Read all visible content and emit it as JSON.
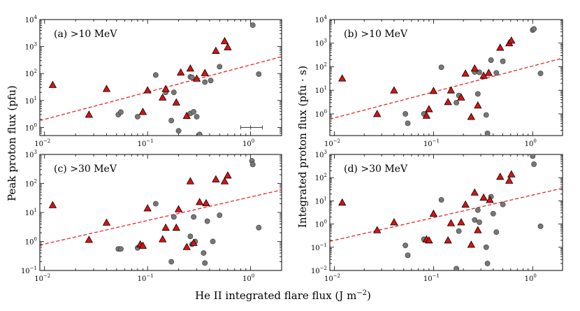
{
  "figure": {
    "xlabel": "He II integrated flare flux (J m",
    "xlabel_exp": "−2",
    "xlabel_close": ")",
    "ylabel_left": "Peak proton flux (pfu)",
    "ylabel_right": "Integrated proton flux (pfu · s)"
  },
  "colors": {
    "triangle_fill": "#dd1111",
    "triangle_edge": "#000000",
    "circle_fill": "#777777",
    "circle_edge": "#333333",
    "fit_line": "#ee2222"
  },
  "chart_data": [
    {
      "id": "a",
      "type": "scatter",
      "label": "(a) >10 MeV",
      "xscale": "log",
      "yscale": "log",
      "xlim": [
        0.009,
        2.0
      ],
      "ylim": [
        0.5,
        10000
      ],
      "yticks": [
        1,
        10,
        100,
        1000,
        10000
      ],
      "xticks": [
        0.01,
        0.1,
        1
      ],
      "fit_line": [
        [
          0.009,
          1.8
        ],
        [
          2.0,
          420
        ]
      ],
      "error_bar": {
        "x": 1.0,
        "y": 1.0,
        "xerr_low": 0.8,
        "xerr_high": 1.3
      },
      "triangles": [
        [
          0.012,
          38
        ],
        [
          0.027,
          3.0
        ],
        [
          0.04,
          27
        ],
        [
          0.09,
          3.8
        ],
        [
          0.1,
          24
        ],
        [
          0.14,
          13
        ],
        [
          0.15,
          27
        ],
        [
          0.19,
          8.5
        ],
        [
          0.21,
          110
        ],
        [
          0.24,
          2.7
        ],
        [
          0.26,
          155
        ],
        [
          0.3,
          65
        ],
        [
          0.36,
          105
        ],
        [
          0.46,
          700
        ],
        [
          0.56,
          1600
        ],
        [
          0.6,
          950
        ]
      ],
      "circles": [
        [
          0.052,
          3.0
        ],
        [
          0.055,
          3.7
        ],
        [
          0.08,
          2.5
        ],
        [
          0.12,
          88
        ],
        [
          0.15,
          20
        ],
        [
          0.17,
          1.8
        ],
        [
          0.18,
          20
        ],
        [
          0.2,
          0.75
        ],
        [
          0.26,
          75
        ],
        [
          0.26,
          3.3
        ],
        [
          0.27,
          72
        ],
        [
          0.28,
          3.8
        ],
        [
          0.3,
          2.5
        ],
        [
          0.32,
          0.55
        ],
        [
          0.36,
          48
        ],
        [
          0.41,
          55
        ],
        [
          0.5,
          180
        ],
        [
          1.05,
          6200
        ],
        [
          1.2,
          95
        ]
      ]
    },
    {
      "id": "b",
      "type": "scatter",
      "label": "(b) >10 MeV",
      "xscale": "log",
      "yscale": "log",
      "xlim": [
        0.009,
        2.0
      ],
      "ylim": [
        0.12,
        10000
      ],
      "yticks": [
        1,
        10,
        100,
        1000,
        10000
      ],
      "xticks": [
        0.01,
        0.1,
        1
      ],
      "fit_line": [
        [
          0.009,
          0.6
        ],
        [
          2.0,
          230
        ]
      ],
      "triangles": [
        [
          0.012,
          32
        ],
        [
          0.027,
          1.0
        ],
        [
          0.04,
          10
        ],
        [
          0.085,
          0.85
        ],
        [
          0.09,
          1.6
        ],
        [
          0.1,
          9.5
        ],
        [
          0.14,
          3.2
        ],
        [
          0.15,
          10
        ],
        [
          0.19,
          5.0
        ],
        [
          0.21,
          52
        ],
        [
          0.24,
          0.75
        ],
        [
          0.26,
          85
        ],
        [
          0.28,
          2.3
        ],
        [
          0.32,
          42
        ],
        [
          0.36,
          55
        ],
        [
          0.47,
          650
        ],
        [
          0.58,
          1000
        ],
        [
          0.61,
          1300
        ]
      ],
      "circles": [
        [
          0.052,
          1.0
        ],
        [
          0.055,
          0.4
        ],
        [
          0.08,
          1.0
        ],
        [
          0.12,
          95
        ],
        [
          0.17,
          3.0
        ],
        [
          0.18,
          6.0
        ],
        [
          0.26,
          60
        ],
        [
          0.28,
          7.0
        ],
        [
          0.29,
          58
        ],
        [
          0.34,
          0.9
        ],
        [
          0.35,
          0.15
        ],
        [
          0.38,
          190
        ],
        [
          0.43,
          55
        ],
        [
          0.5,
          170
        ],
        [
          1.0,
          3600
        ],
        [
          1.03,
          4000
        ],
        [
          1.2,
          52
        ]
      ]
    },
    {
      "id": "c",
      "type": "scatter",
      "label": "(c) >30 MeV",
      "xscale": "log",
      "yscale": "log",
      "xlim": [
        0.009,
        2.0
      ],
      "ylim": [
        0.1,
        1000
      ],
      "yticks": [
        0.1,
        1,
        10,
        100,
        1000
      ],
      "xticks": [
        0.01,
        0.1,
        1
      ],
      "fit_line": [
        [
          0.009,
          0.75
        ],
        [
          2.0,
          60
        ]
      ],
      "triangles": [
        [
          0.012,
          18
        ],
        [
          0.027,
          1.15
        ],
        [
          0.04,
          4.5
        ],
        [
          0.085,
          0.8
        ],
        [
          0.09,
          0.72
        ],
        [
          0.1,
          14
        ],
        [
          0.14,
          1.2
        ],
        [
          0.15,
          3.0
        ],
        [
          0.19,
          3.0
        ],
        [
          0.2,
          13
        ],
        [
          0.24,
          0.65
        ],
        [
          0.26,
          120
        ],
        [
          0.28,
          0.9
        ],
        [
          0.32,
          23
        ],
        [
          0.37,
          21
        ],
        [
          0.46,
          140
        ],
        [
          0.56,
          120
        ],
        [
          0.6,
          190
        ]
      ],
      "circles": [
        [
          0.052,
          0.55
        ],
        [
          0.055,
          0.55
        ],
        [
          0.08,
          0.6
        ],
        [
          0.12,
          20
        ],
        [
          0.17,
          0.2
        ],
        [
          0.18,
          7.0
        ],
        [
          0.26,
          1.5
        ],
        [
          0.27,
          0.8
        ],
        [
          0.28,
          7.0
        ],
        [
          0.29,
          1.0
        ],
        [
          0.35,
          0.4
        ],
        [
          0.36,
          0.18
        ],
        [
          0.38,
          5.0
        ],
        [
          0.43,
          1.0
        ],
        [
          0.5,
          8.0
        ],
        [
          1.03,
          600
        ],
        [
          1.05,
          450
        ],
        [
          1.2,
          3.0
        ]
      ]
    },
    {
      "id": "d",
      "type": "scatter",
      "label": "(d) >30 MeV",
      "xscale": "log",
      "yscale": "log",
      "xlim": [
        0.009,
        2.0
      ],
      "ylim": [
        0.01,
        1000
      ],
      "yticks": [
        0.01,
        0.1,
        1,
        10,
        100,
        1000
      ],
      "xticks": [
        0.01,
        0.1,
        1
      ],
      "fit_line": [
        [
          0.009,
          0.18
        ],
        [
          2.0,
          35
        ]
      ],
      "triangles": [
        [
          0.012,
          8.5
        ],
        [
          0.027,
          0.55
        ],
        [
          0.04,
          1.2
        ],
        [
          0.085,
          0.22
        ],
        [
          0.09,
          0.2
        ],
        [
          0.1,
          2.8
        ],
        [
          0.14,
          0.2
        ],
        [
          0.15,
          1.1
        ],
        [
          0.19,
          1.2
        ],
        [
          0.21,
          7.0
        ],
        [
          0.24,
          0.13
        ],
        [
          0.26,
          23
        ],
        [
          0.28,
          0.55
        ],
        [
          0.32,
          14
        ],
        [
          0.37,
          11
        ],
        [
          0.47,
          110
        ],
        [
          0.58,
          75
        ],
        [
          0.61,
          140
        ]
      ],
      "circles": [
        [
          0.052,
          0.12
        ],
        [
          0.055,
          0.045
        ],
        [
          0.08,
          0.22
        ],
        [
          0.12,
          11
        ],
        [
          0.17,
          0.012
        ],
        [
          0.18,
          0.5
        ],
        [
          0.26,
          1.5
        ],
        [
          0.28,
          4.0
        ],
        [
          0.29,
          1.2
        ],
        [
          0.34,
          0.1
        ],
        [
          0.35,
          0.02
        ],
        [
          0.38,
          15
        ],
        [
          0.4,
          2.8
        ],
        [
          0.43,
          0.45
        ],
        [
          0.5,
          7.0
        ],
        [
          1.0,
          850
        ],
        [
          1.03,
          380
        ],
        [
          1.2,
          0.8
        ]
      ]
    }
  ]
}
